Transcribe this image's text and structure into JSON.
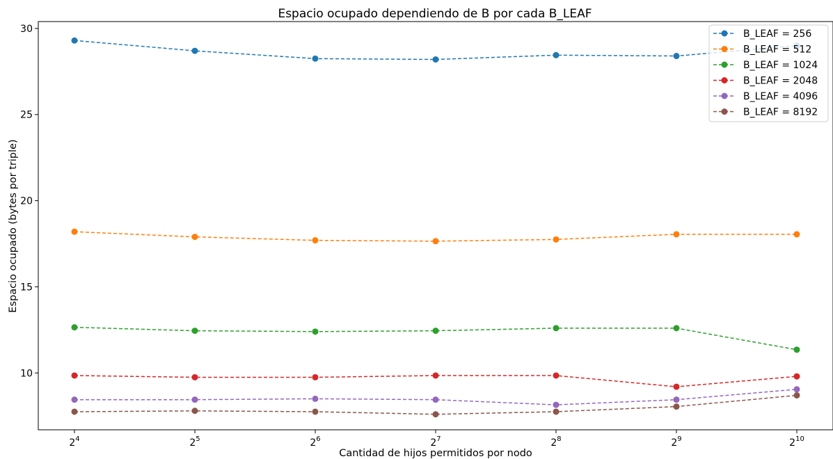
{
  "chart_data": {
    "type": "line",
    "title": "Espacio ocupado dependiendo de B por cada B_LEAF",
    "xlabel": "Cantidad de hijos permitidos por nodo",
    "ylabel": "Espacio ocupado (bytes por triple)",
    "x": [
      16,
      32,
      64,
      128,
      256,
      512,
      1024
    ],
    "x_ticks": [
      {
        "base": "2",
        "exp": "4"
      },
      {
        "base": "2",
        "exp": "5"
      },
      {
        "base": "2",
        "exp": "6"
      },
      {
        "base": "2",
        "exp": "7"
      },
      {
        "base": "2",
        "exp": "8"
      },
      {
        "base": "2",
        "exp": "9"
      },
      {
        "base": "2",
        "exp": "10"
      }
    ],
    "x_scale": "log2",
    "y_ticks": [
      "10",
      "15",
      "20",
      "25",
      "30"
    ],
    "ylim": [
      6.7,
      30.4
    ],
    "grid": false,
    "legend_position": "top-right",
    "line_style": "dashed",
    "marker": "circle",
    "series": [
      {
        "name": "B_LEAF = 256",
        "color": "#1f77b4",
        "values": [
          29.3,
          28.7,
          28.25,
          28.2,
          28.45,
          28.4,
          29.0
        ]
      },
      {
        "name": "B_LEAF = 512",
        "color": "#ff7f0e",
        "values": [
          18.2,
          17.9,
          17.7,
          17.65,
          17.75,
          18.05,
          18.05
        ]
      },
      {
        "name": "B_LEAF = 1024",
        "color": "#2ca02c",
        "values": [
          12.65,
          12.45,
          12.4,
          12.45,
          12.6,
          12.6,
          11.35
        ]
      },
      {
        "name": "B_LEAF = 2048",
        "color": "#d62728",
        "values": [
          9.85,
          9.75,
          9.75,
          9.85,
          9.85,
          9.2,
          9.8
        ]
      },
      {
        "name": "B_LEAF = 4096",
        "color": "#9467bd",
        "values": [
          8.45,
          8.45,
          8.5,
          8.45,
          8.15,
          8.45,
          9.05
        ]
      },
      {
        "name": "B_LEAF = 8192",
        "color": "#8c564b",
        "values": [
          7.75,
          7.8,
          7.75,
          7.6,
          7.75,
          8.05,
          8.7
        ]
      }
    ]
  }
}
